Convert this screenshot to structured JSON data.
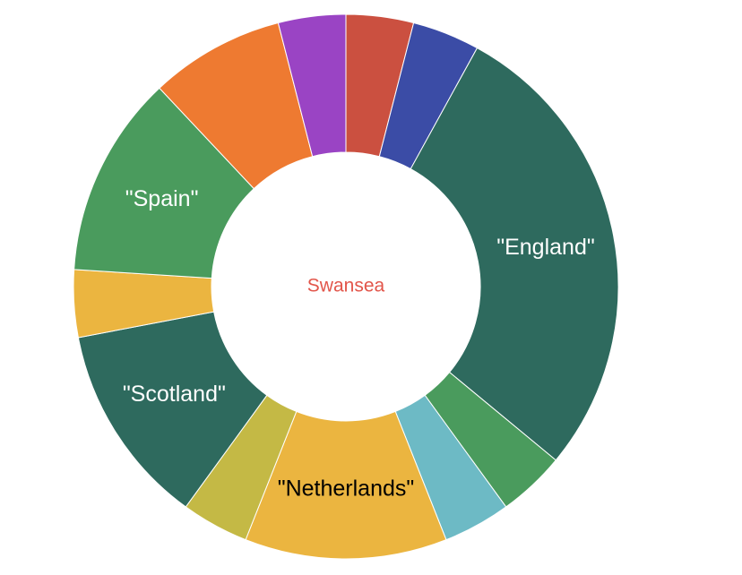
{
  "chart_data": {
    "type": "pie",
    "variant": "donut",
    "center_label": "Swansea",
    "center_label_color": "#e2554a",
    "slices": [
      {
        "label": "",
        "value": 1,
        "color": "#cb5040"
      },
      {
        "label": "",
        "value": 1,
        "color": "#3b4ca6"
      },
      {
        "label": "\"England\"",
        "value": 7,
        "color": "#2e6a5e"
      },
      {
        "label": "",
        "value": 1,
        "color": "#4a9b5d"
      },
      {
        "label": "",
        "value": 1,
        "color": "#6dbac5"
      },
      {
        "label": "\"Netherlands\"",
        "value": 3,
        "color": "#ebb540"
      },
      {
        "label": "",
        "value": 1,
        "color": "#c4b945"
      },
      {
        "label": "\"Scotland\"",
        "value": 3,
        "color": "#2e6a5e"
      },
      {
        "label": "",
        "value": 1,
        "color": "#ebb540"
      },
      {
        "label": "\"Spain\"",
        "value": 3,
        "color": "#4a9b5d"
      },
      {
        "label": "",
        "value": 2,
        "color": "#ee7a31"
      },
      {
        "label": "",
        "value": 1,
        "color": "#9a44c4"
      }
    ]
  }
}
